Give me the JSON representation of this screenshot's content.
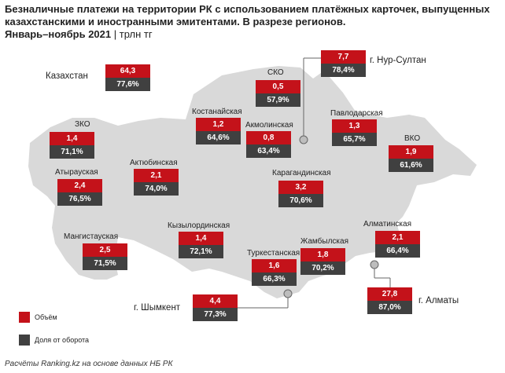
{
  "title": "Безналичные платежи на территории РК с использованием платёжных карточек, выпущенных казахстанскими и иностранными эмитентами. В разрезе регионов.",
  "subtitle": {
    "period": "Январь–ноябрь 2021",
    "separator": "|",
    "unit": "трлн тг"
  },
  "colors": {
    "volume": "#c4121a",
    "share": "#404040",
    "map": "#d9d9d9"
  },
  "regions": [
    {
      "label": "Казахстан",
      "value": "64,3",
      "share": "77,6%"
    },
    {
      "label": "СКО",
      "value": "0,5",
      "share": "57,9%"
    },
    {
      "label": "г. Нур-Султан",
      "value": "7,7",
      "share": "78,4%"
    },
    {
      "label": "Костанайская",
      "value": "1,2",
      "share": "64,6%"
    },
    {
      "label": "Акмолинская",
      "value": "0,8",
      "share": "63,4%"
    },
    {
      "label": "Павлодарская",
      "value": "1,3",
      "share": "65,7%"
    },
    {
      "label": "ЗКО",
      "value": "1,4",
      "share": "71,1%"
    },
    {
      "label": "ВКО",
      "value": "1,9",
      "share": "61,6%"
    },
    {
      "label": "Атырауская",
      "value": "2,4",
      "share": "76,5%"
    },
    {
      "label": "Актюбинская",
      "value": "2,1",
      "share": "74,0%"
    },
    {
      "label": "Карагандинская",
      "value": "3,2",
      "share": "70,6%"
    },
    {
      "label": "Мангистауская",
      "value": "2,5",
      "share": "71,5%"
    },
    {
      "label": "Кызылординская",
      "value": "1,4",
      "share": "72,1%"
    },
    {
      "label": "Алматинская",
      "value": "2,1",
      "share": "66,4%"
    },
    {
      "label": "Туркестанская",
      "value": "1,6",
      "share": "66,3%"
    },
    {
      "label": "Жамбылская",
      "value": "1,8",
      "share": "70,2%"
    },
    {
      "label": "г. Шымкент",
      "value": "4,4",
      "share": "77,3%"
    },
    {
      "label": "г. Алматы",
      "value": "27,8",
      "share": "87,0%"
    }
  ],
  "legend": {
    "volume": "Объём",
    "share": "Доля от оборота"
  },
  "source": "Расчёты Ranking.kz на основе данных НБ РК"
}
